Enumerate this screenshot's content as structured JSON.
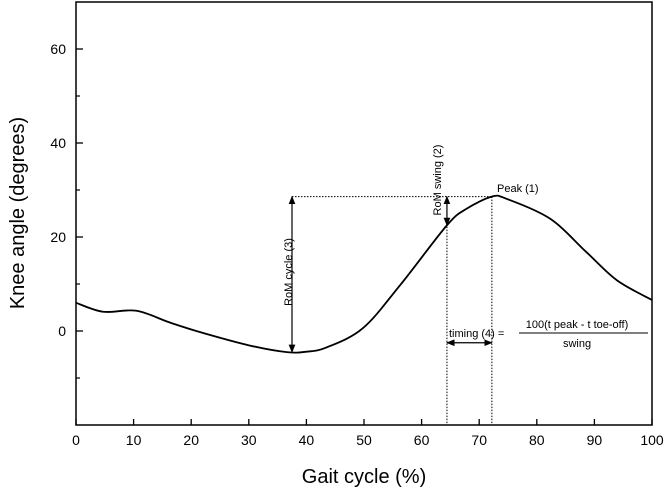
{
  "chart_data": {
    "type": "line",
    "title": "",
    "xlabel": "Gait cycle (%)",
    "ylabel": "Knee angle (degrees)",
    "xlim": [
      0,
      100
    ],
    "ylim": [
      -20,
      70
    ],
    "xticks": [
      0,
      10,
      20,
      30,
      40,
      50,
      60,
      70,
      80,
      90,
      100
    ],
    "yticks": [
      0,
      20,
      40,
      60
    ],
    "yminor_ticks": [
      -10,
      10,
      30,
      50
    ],
    "grid": false,
    "line_color": "#000000",
    "series": [
      {
        "x": [
          0,
          4.7,
          10.5,
          16.3,
          22,
          30.2,
          36.6,
          40,
          43.5,
          49.8,
          56.3,
          64.4,
          67.8,
          72.2,
          74.8,
          82.3,
          88.6,
          93.9,
          100
        ],
        "y": [
          6.0,
          4.1,
          4.3,
          1.8,
          -0.4,
          -3.1,
          -4.5,
          -4.4,
          -3.5,
          0.6,
          9.8,
          22.5,
          26.0,
          28.6,
          28.1,
          23.9,
          16.8,
          10.8,
          6.6
        ]
      }
    ],
    "annotations": {
      "peak": {
        "label": "Peak (1)",
        "x": 72.2,
        "y": 28.6
      },
      "rom_swing": {
        "label": "RoM swing (2)",
        "x": 64.4,
        "y_from": 22.5,
        "y_to": 28.6
      },
      "rom_cycle": {
        "label": "RoM cycle (3)",
        "x": 37.5,
        "y_from": -4.5,
        "y_to": 28.6
      },
      "timing": {
        "label": "timing (4) =",
        "x_from": 64.4,
        "x_to": 72.2,
        "y": -2.5,
        "numerator": "100(t peak - t toe-off)",
        "denominator": "swing"
      }
    }
  }
}
